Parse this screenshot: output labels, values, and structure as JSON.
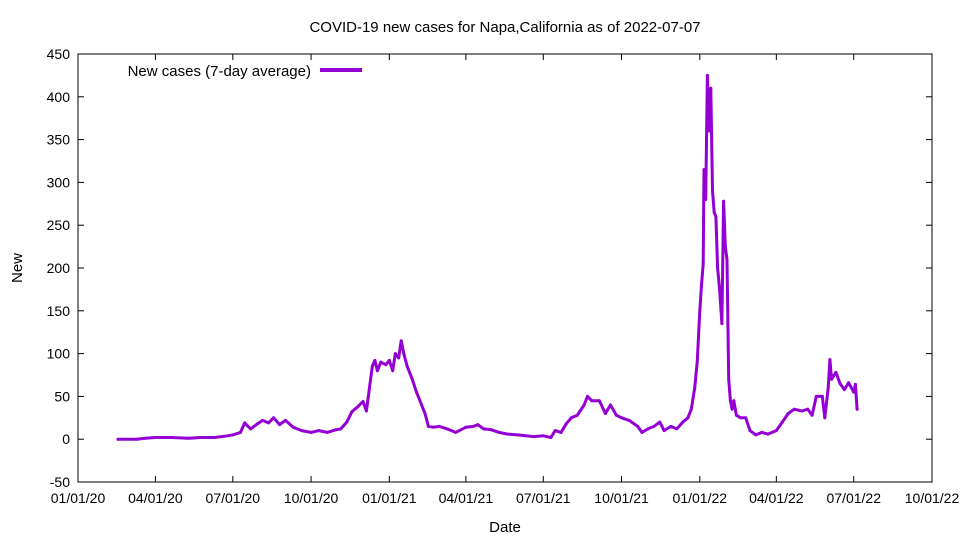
{
  "chart_data": {
    "type": "line",
    "title": "COVID-19 new cases for Napa,California as of 2022-07-07",
    "xlabel": "Date",
    "ylabel": "New",
    "ylim": [
      -50,
      450
    ],
    "yticks": [
      -50,
      0,
      50,
      100,
      150,
      200,
      250,
      300,
      350,
      400,
      450
    ],
    "xlim": [
      "2020-01-01",
      "2022-10-01"
    ],
    "xticks": [
      {
        "date": "2020-01-01",
        "label": "01/01/20"
      },
      {
        "date": "2020-04-01",
        "label": "04/01/20"
      },
      {
        "date": "2020-07-01",
        "label": "07/01/20"
      },
      {
        "date": "2020-10-01",
        "label": "10/01/20"
      },
      {
        "date": "2021-01-01",
        "label": "01/01/21"
      },
      {
        "date": "2021-04-01",
        "label": "04/01/21"
      },
      {
        "date": "2021-07-01",
        "label": "07/01/21"
      },
      {
        "date": "2021-10-01",
        "label": "10/01/21"
      },
      {
        "date": "2022-01-01",
        "label": "01/01/22"
      },
      {
        "date": "2022-04-01",
        "label": "04/01/22"
      },
      {
        "date": "2022-07-01",
        "label": "07/01/22"
      },
      {
        "date": "2022-10-01",
        "label": "10/01/22"
      }
    ],
    "grid": false,
    "legend_position": "top-left",
    "series": [
      {
        "name": "New cases (7-day average)",
        "color": "#9400d3",
        "points": [
          [
            "2020-02-17",
            0
          ],
          [
            "2020-03-10",
            0
          ],
          [
            "2020-03-20",
            1
          ],
          [
            "2020-04-01",
            2
          ],
          [
            "2020-04-20",
            2
          ],
          [
            "2020-05-10",
            1
          ],
          [
            "2020-05-25",
            2
          ],
          [
            "2020-06-10",
            2
          ],
          [
            "2020-06-25",
            4
          ],
          [
            "2020-07-01",
            5
          ],
          [
            "2020-07-10",
            8
          ],
          [
            "2020-07-15",
            19
          ],
          [
            "2020-07-22",
            12
          ],
          [
            "2020-07-30",
            18
          ],
          [
            "2020-08-05",
            22
          ],
          [
            "2020-08-12",
            19
          ],
          [
            "2020-08-18",
            25
          ],
          [
            "2020-08-25",
            17
          ],
          [
            "2020-09-01",
            22
          ],
          [
            "2020-09-10",
            14
          ],
          [
            "2020-09-20",
            10
          ],
          [
            "2020-10-01",
            8
          ],
          [
            "2020-10-10",
            10
          ],
          [
            "2020-10-20",
            8
          ],
          [
            "2020-10-30",
            11
          ],
          [
            "2020-11-05",
            12
          ],
          [
            "2020-11-12",
            20
          ],
          [
            "2020-11-18",
            32
          ],
          [
            "2020-11-25",
            38
          ],
          [
            "2020-12-01",
            44
          ],
          [
            "2020-12-05",
            33
          ],
          [
            "2020-12-08",
            55
          ],
          [
            "2020-12-12",
            85
          ],
          [
            "2020-12-15",
            92
          ],
          [
            "2020-12-18",
            80
          ],
          [
            "2020-12-22",
            90
          ],
          [
            "2020-12-28",
            87
          ],
          [
            "2021-01-01",
            92
          ],
          [
            "2021-01-05",
            80
          ],
          [
            "2021-01-08",
            100
          ],
          [
            "2021-01-12",
            95
          ],
          [
            "2021-01-15",
            115
          ],
          [
            "2021-01-18",
            100
          ],
          [
            "2021-01-22",
            85
          ],
          [
            "2021-01-28",
            70
          ],
          [
            "2021-02-02",
            55
          ],
          [
            "2021-02-08",
            40
          ],
          [
            "2021-02-12",
            30
          ],
          [
            "2021-02-16",
            15
          ],
          [
            "2021-02-22",
            14
          ],
          [
            "2021-03-01",
            15
          ],
          [
            "2021-03-10",
            12
          ],
          [
            "2021-03-20",
            8
          ],
          [
            "2021-04-01",
            14
          ],
          [
            "2021-04-10",
            15
          ],
          [
            "2021-04-15",
            17
          ],
          [
            "2021-04-22",
            12
          ],
          [
            "2021-05-01",
            11
          ],
          [
            "2021-05-10",
            8
          ],
          [
            "2021-05-20",
            6
          ],
          [
            "2021-06-01",
            5
          ],
          [
            "2021-06-10",
            4
          ],
          [
            "2021-06-20",
            3
          ],
          [
            "2021-07-01",
            4
          ],
          [
            "2021-07-10",
            2
          ],
          [
            "2021-07-15",
            10
          ],
          [
            "2021-07-22",
            8
          ],
          [
            "2021-07-28",
            18
          ],
          [
            "2021-08-03",
            25
          ],
          [
            "2021-08-10",
            28
          ],
          [
            "2021-08-18",
            40
          ],
          [
            "2021-08-22",
            50
          ],
          [
            "2021-08-27",
            45
          ],
          [
            "2021-09-05",
            45
          ],
          [
            "2021-09-12",
            30
          ],
          [
            "2021-09-18",
            40
          ],
          [
            "2021-09-25",
            28
          ],
          [
            "2021-10-01",
            25
          ],
          [
            "2021-10-10",
            22
          ],
          [
            "2021-10-20",
            15
          ],
          [
            "2021-10-25",
            8
          ],
          [
            "2021-11-01",
            12
          ],
          [
            "2021-11-08",
            15
          ],
          [
            "2021-11-15",
            20
          ],
          [
            "2021-11-20",
            10
          ],
          [
            "2021-11-28",
            15
          ],
          [
            "2021-12-05",
            12
          ],
          [
            "2021-12-12",
            20
          ],
          [
            "2021-12-18",
            25
          ],
          [
            "2021-12-22",
            35
          ],
          [
            "2021-12-26",
            60
          ],
          [
            "2021-12-29",
            90
          ],
          [
            "2022-01-01",
            150
          ],
          [
            "2022-01-03",
            180
          ],
          [
            "2022-01-05",
            205
          ],
          [
            "2022-01-06",
            315
          ],
          [
            "2022-01-08",
            280
          ],
          [
            "2022-01-10",
            425
          ],
          [
            "2022-01-12",
            360
          ],
          [
            "2022-01-14",
            410
          ],
          [
            "2022-01-16",
            290
          ],
          [
            "2022-01-18",
            265
          ],
          [
            "2022-01-20",
            260
          ],
          [
            "2022-01-22",
            200
          ],
          [
            "2022-01-24",
            178
          ],
          [
            "2022-01-27",
            135
          ],
          [
            "2022-01-29",
            278
          ],
          [
            "2022-01-31",
            225
          ],
          [
            "2022-02-02",
            210
          ],
          [
            "2022-02-04",
            70
          ],
          [
            "2022-02-06",
            45
          ],
          [
            "2022-02-08",
            35
          ],
          [
            "2022-02-10",
            45
          ],
          [
            "2022-02-13",
            28
          ],
          [
            "2022-02-18",
            25
          ],
          [
            "2022-02-24",
            25
          ],
          [
            "2022-03-01",
            10
          ],
          [
            "2022-03-08",
            5
          ],
          [
            "2022-03-15",
            8
          ],
          [
            "2022-03-22",
            6
          ],
          [
            "2022-04-01",
            10
          ],
          [
            "2022-04-08",
            20
          ],
          [
            "2022-04-15",
            30
          ],
          [
            "2022-04-22",
            35
          ],
          [
            "2022-05-01",
            33
          ],
          [
            "2022-05-08",
            35
          ],
          [
            "2022-05-13",
            28
          ],
          [
            "2022-05-18",
            50
          ],
          [
            "2022-05-25",
            50
          ],
          [
            "2022-05-28",
            25
          ],
          [
            "2022-06-01",
            60
          ],
          [
            "2022-06-03",
            93
          ],
          [
            "2022-06-05",
            70
          ],
          [
            "2022-06-10",
            78
          ],
          [
            "2022-06-15",
            65
          ],
          [
            "2022-06-20",
            58
          ],
          [
            "2022-06-25",
            66
          ],
          [
            "2022-07-01",
            55
          ],
          [
            "2022-07-03",
            64
          ],
          [
            "2022-07-05",
            35
          ]
        ]
      }
    ]
  }
}
